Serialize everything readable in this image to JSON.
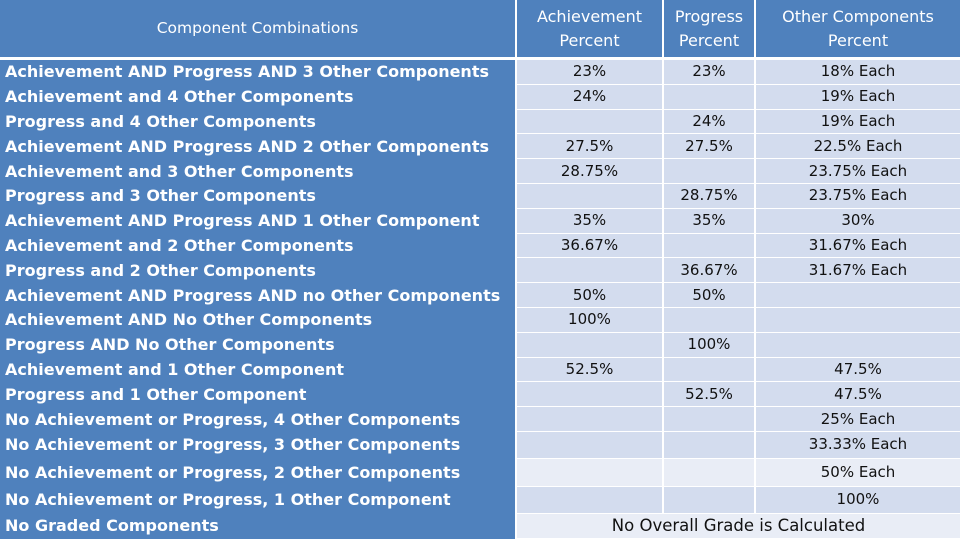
{
  "headers": {
    "combinations": "Component Combinations",
    "achievement": "Achievement Percent",
    "progress": "Progress Percent",
    "other": "Other Components Percent"
  },
  "rows": [
    {
      "label": "Achievement AND Progress AND 3 Other Components",
      "achievement": "23%",
      "progress": "23%",
      "other": "18% Each"
    },
    {
      "label": "Achievement and 4 Other Components",
      "achievement": "24%",
      "progress": "",
      "other": "19% Each"
    },
    {
      "label": "Progress and 4 Other Components",
      "achievement": "",
      "progress": "24%",
      "other": "19% Each"
    },
    {
      "label": "Achievement AND Progress AND 2 Other Components",
      "achievement": "27.5%",
      "progress": "27.5%",
      "other": "22.5% Each"
    },
    {
      "label": "Achievement and 3 Other Components",
      "achievement": "28.75%",
      "progress": "",
      "other": "23.75% Each"
    },
    {
      "label": "Progress and 3 Other Components",
      "achievement": "",
      "progress": "28.75%",
      "other": "23.75% Each"
    },
    {
      "label": "Achievement AND Progress AND 1 Other Component",
      "achievement": "35%",
      "progress": "35%",
      "other": "30%"
    },
    {
      "label": "Achievement and 2 Other Components",
      "achievement": "36.67%",
      "progress": "",
      "other": "31.67% Each"
    },
    {
      "label": "Progress and 2 Other Components",
      "achievement": "",
      "progress": "36.67%",
      "other": "31.67% Each"
    },
    {
      "label": "Achievement AND Progress AND no Other Components",
      "achievement": "50%",
      "progress": "50%",
      "other": ""
    },
    {
      "label": "Achievement AND No Other Components",
      "achievement": "100%",
      "progress": "",
      "other": ""
    },
    {
      "label": "Progress AND No Other Components",
      "achievement": "",
      "progress": "100%",
      "other": ""
    },
    {
      "label": "Achievement and 1 Other Component",
      "achievement": "52.5%",
      "progress": "",
      "other": "47.5%"
    },
    {
      "label": "Progress and 1 Other Component",
      "achievement": "",
      "progress": "52.5%",
      "other": "47.5%"
    },
    {
      "label": "No Achievement or Progress, 4 Other Components",
      "achievement": "",
      "progress": "",
      "other": "25% Each"
    },
    {
      "label": "No Achievement or Progress, 3 Other Components",
      "achievement": "",
      "progress": "",
      "other": "33.33% Each"
    },
    {
      "label": "No Achievement or Progress, 2 Other Components",
      "achievement": "",
      "progress": "",
      "other": "50% Each"
    },
    {
      "label": "No Achievement or Progress, 1 Other Component",
      "achievement": "",
      "progress": "",
      "other": "100%"
    }
  ],
  "final_row": {
    "label": "No Graded Components",
    "merged_text": "No Overall Grade is Calculated"
  }
}
